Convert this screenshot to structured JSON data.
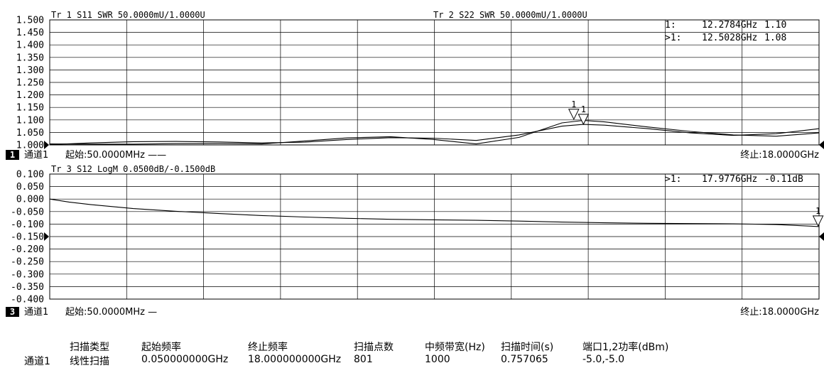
{
  "colors": {
    "background": "#ffffff",
    "grid": "#000000",
    "trace": "#000000"
  },
  "chart_data": [
    {
      "type": "line",
      "panel": "upper",
      "channel_label": "通道1",
      "channel_number": "1",
      "start_label": "起始:50.0000MHz ——",
      "stop_label": "终止:18.0000GHz",
      "x_range_ghz": [
        0.05,
        18.0
      ],
      "ylim": [
        1.0,
        1.5
      ],
      "y_ticks": [
        "1.500",
        "1.450",
        "1.400",
        "1.350",
        "1.300",
        "1.250",
        "1.200",
        "1.150",
        "1.100",
        "1.050",
        "1.000"
      ],
      "reference_level": 1.0,
      "grid": true,
      "traces": [
        {
          "header": "Tr 1  S11 SWR 50.0000mU/1.0000U",
          "x_ghz": [
            0.05,
            1.0,
            2.0,
            3.0,
            4.0,
            5.0,
            6.0,
            7.0,
            8.0,
            9.0,
            10.0,
            11.0,
            12.0,
            12.5,
            13.0,
            14.0,
            15.0,
            16.0,
            17.0,
            18.0
          ],
          "y": [
            1.001,
            1.008,
            1.013,
            1.014,
            1.012,
            1.008,
            1.011,
            1.022,
            1.029,
            1.027,
            1.018,
            1.04,
            1.075,
            1.082,
            1.079,
            1.065,
            1.048,
            1.038,
            1.045,
            1.065
          ]
        },
        {
          "header": "Tr 2  S22 SWR 50.0000mU/1.0000U",
          "x_ghz": [
            0.05,
            1.0,
            2.0,
            3.0,
            4.0,
            5.0,
            6.0,
            7.0,
            8.0,
            9.0,
            10.0,
            11.0,
            12.0,
            12.5,
            13.0,
            14.0,
            15.0,
            16.0,
            17.0,
            18.0
          ],
          "y": [
            1.004,
            1.003,
            1.003,
            1.005,
            1.006,
            1.004,
            1.016,
            1.028,
            1.033,
            1.022,
            1.004,
            1.03,
            1.088,
            1.098,
            1.092,
            1.072,
            1.054,
            1.04,
            1.035,
            1.048
          ]
        }
      ],
      "markers": [
        {
          "label": "1",
          "x_ghz": 12.2784,
          "y": 1.1
        },
        {
          "label": "1",
          "x_ghz": 12.5028,
          "y": 1.08
        }
      ],
      "marker_readout": [
        {
          "prefix": "1:",
          "freq": "12.2784GHz",
          "value": "1.10"
        },
        {
          "prefix": ">1:",
          "freq": "12.5028GHz",
          "value": "1.08"
        }
      ]
    },
    {
      "type": "line",
      "panel": "lower",
      "channel_label": "通道1",
      "channel_number": "3",
      "start_label": "起始:50.0000MHz —",
      "stop_label": "终止:18.0000GHz",
      "x_range_ghz": [
        0.05,
        18.0
      ],
      "ylim": [
        -0.4,
        0.1
      ],
      "y_ticks": [
        "0.100",
        "0.050",
        "0.000",
        "-0.050",
        "-0.100",
        "-0.150",
        "-0.200",
        "-0.250",
        "-0.300",
        "-0.350",
        "-0.400"
      ],
      "reference_level": -0.15,
      "grid": true,
      "traces": [
        {
          "header": "Tr 3  S12 LogM 0.0500dB/-0.1500dB",
          "x_ghz": [
            0.05,
            0.5,
            1.0,
            2.0,
            3.0,
            4.0,
            5.0,
            6.0,
            7.0,
            8.0,
            9.0,
            10.0,
            11.0,
            12.0,
            13.0,
            14.0,
            15.0,
            16.0,
            17.0,
            18.0
          ],
          "y": [
            0.0,
            -0.012,
            -0.022,
            -0.038,
            -0.049,
            -0.058,
            -0.066,
            -0.072,
            -0.077,
            -0.081,
            -0.083,
            -0.085,
            -0.088,
            -0.092,
            -0.095,
            -0.097,
            -0.098,
            -0.099,
            -0.102,
            -0.11
          ]
        }
      ],
      "markers": [
        {
          "label": "1",
          "x_ghz": 17.9776,
          "y": -0.11
        }
      ],
      "marker_readout": [
        {
          "prefix": ">1:",
          "freq": "17.9776GHz",
          "value": "-0.11dB"
        }
      ]
    }
  ],
  "params": {
    "headers": [
      "扫描类型",
      "起始频率",
      "终止频率",
      "扫描点数",
      "中频带宽(Hz)",
      "扫描时间(s)",
      "端口1,2功率(dBm)"
    ],
    "row_label": "通道1",
    "values": [
      "线性扫描",
      "0.050000000GHz",
      "18.000000000GHz",
      "801",
      "1000",
      "0.757065",
      "-5.0,-5.0"
    ]
  }
}
